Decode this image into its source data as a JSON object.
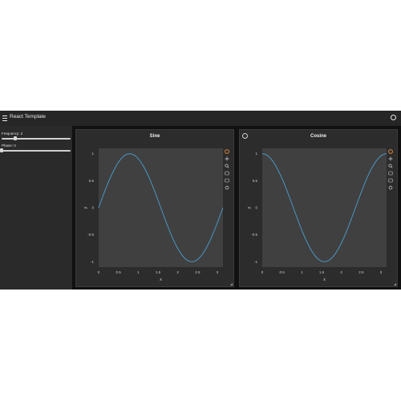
{
  "header": {
    "title": "React Template",
    "menu_icon": "hamburger-menu-icon",
    "right_icon": "settings-icon"
  },
  "sidebar": {
    "controls": [
      {
        "label": "Frequency: 2",
        "value": 2,
        "min": 0,
        "max": 10
      },
      {
        "label": "Phase: 0",
        "value": 0,
        "min": 0,
        "max": 6.28
      }
    ]
  },
  "panels": [
    {
      "title": "Sine",
      "xlabel": "x",
      "ylabel": "y",
      "line_color": "#4a9fd0",
      "modebar": [
        "plotly-logo-icon",
        "pan-icon",
        "zoom-icon",
        "camera-icon",
        "download-icon",
        "reset-icon"
      ]
    },
    {
      "title": "Cosine",
      "xlabel": "x",
      "ylabel": "y",
      "line_color": "#4a9fd0",
      "modebar": [
        "plotly-logo-icon",
        "pan-icon",
        "zoom-icon",
        "camera-icon",
        "download-icon",
        "reset-icon"
      ]
    }
  ],
  "chart_data": [
    {
      "type": "line",
      "title": "Sine",
      "xlabel": "x",
      "ylabel": "y",
      "xlim": [
        0,
        3.1416
      ],
      "ylim": [
        -1.1,
        1.1
      ],
      "xticks": [
        0,
        0.5,
        1,
        1.5,
        2,
        2.5,
        3
      ],
      "xticklabels": [
        "0",
        "0.5",
        "1",
        "1.5",
        "2",
        "2.5",
        "3"
      ],
      "yticks": [
        -1,
        -0.5,
        0,
        0.5,
        1
      ],
      "yticklabels": [
        "-1",
        "-0.5",
        "0",
        "0.5",
        "1"
      ],
      "grid": false,
      "series": [
        {
          "function": "sin",
          "frequency": 2,
          "phase": 0,
          "x": [
            0,
            0.2,
            0.4,
            0.6,
            0.785,
            1.0,
            1.2,
            1.4,
            1.571,
            1.8,
            2.0,
            2.2,
            2.356,
            2.6,
            2.8,
            3.0,
            3.1416
          ],
          "y": [
            0,
            0.389,
            0.717,
            0.932,
            1.0,
            0.909,
            0.675,
            0.335,
            0,
            -0.443,
            -0.757,
            -0.952,
            -1.0,
            -0.885,
            -0.631,
            -0.279,
            0
          ]
        }
      ]
    },
    {
      "type": "line",
      "title": "Cosine",
      "xlabel": "x",
      "ylabel": "y",
      "xlim": [
        0,
        3.1416
      ],
      "ylim": [
        -1.1,
        1.1
      ],
      "xticks": [
        0,
        0.5,
        1,
        1.5,
        2,
        2.5,
        3
      ],
      "xticklabels": [
        "0",
        "0.5",
        "1",
        "1.5",
        "2",
        "2.5",
        "3"
      ],
      "yticks": [
        -1,
        -0.5,
        0,
        0.5,
        1
      ],
      "yticklabels": [
        "-1",
        "-0.5",
        "0",
        "0.5",
        "1"
      ],
      "grid": false,
      "series": [
        {
          "function": "cos",
          "frequency": 2,
          "phase": 0,
          "x": [
            0,
            0.2,
            0.4,
            0.6,
            0.785,
            1.0,
            1.2,
            1.4,
            1.571,
            1.8,
            2.0,
            2.2,
            2.356,
            2.6,
            2.8,
            3.0,
            3.1416
          ],
          "y": [
            1,
            0.921,
            0.697,
            0.362,
            0,
            -0.416,
            -0.737,
            -0.942,
            -1.0,
            -0.897,
            -0.654,
            -0.307,
            0,
            0.469,
            0.776,
            0.96,
            1.0
          ]
        }
      ]
    }
  ]
}
